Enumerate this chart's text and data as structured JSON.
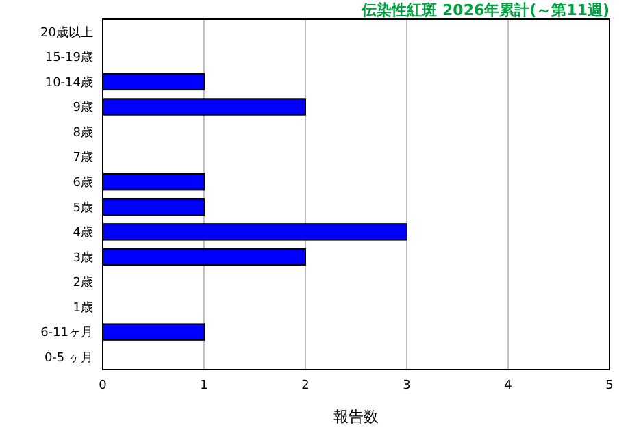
{
  "chart_data": {
    "type": "bar",
    "orientation": "horizontal",
    "title": "伝染性紅斑 2026年累計(～第11週)",
    "xlabel": "報告数",
    "categories": [
      "20歳以上",
      "15-19歳",
      "10-14歳",
      "9歳",
      "8歳",
      "7歳",
      "6歳",
      "5歳",
      "4歳",
      "3歳",
      "2歳",
      "1歳",
      "6-11ヶ月",
      "0-5 ヶ月"
    ],
    "values": [
      0,
      0,
      1,
      2,
      0,
      0,
      1,
      1,
      3,
      2,
      0,
      0,
      1,
      0
    ],
    "color": "#0000ff",
    "xlim": [
      0,
      5
    ],
    "xticks": [
      0,
      1,
      2,
      3,
      4,
      5
    ],
    "grid": "x"
  }
}
